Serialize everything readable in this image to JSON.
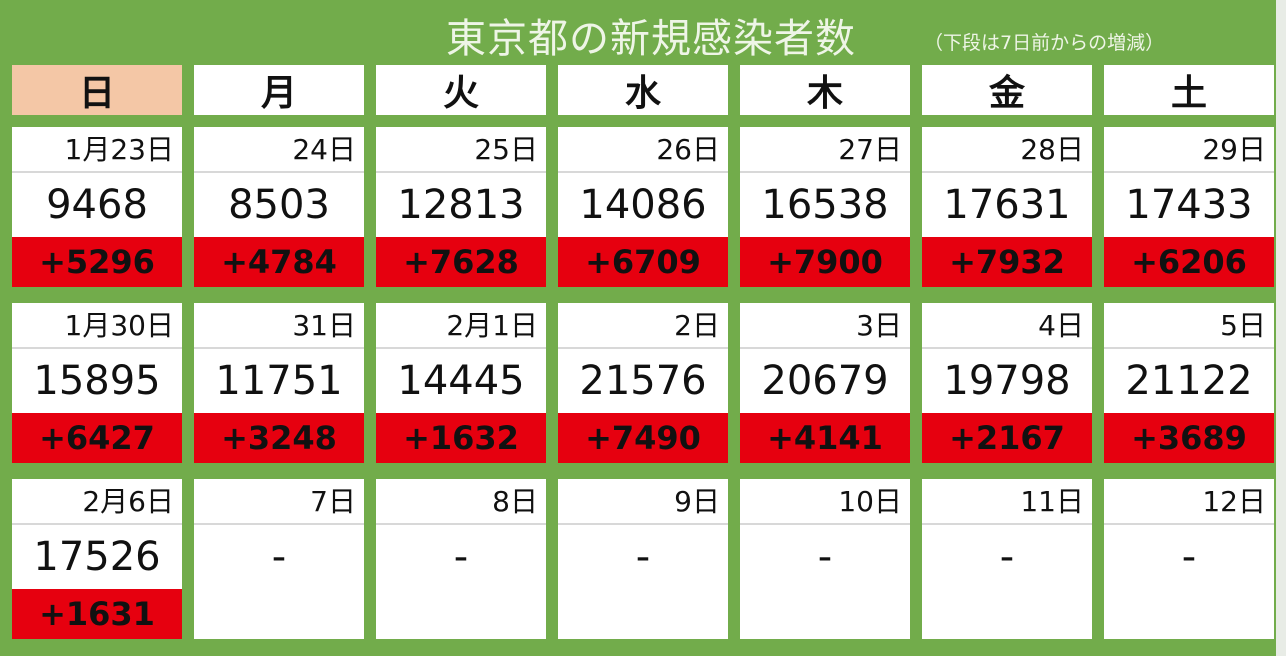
{
  "title": "東京都の新規感染者数",
  "subtitle": "（下段は7日前からの増減）",
  "colors": {
    "background": "#72ac4b",
    "sunday_header": "#f4c7a6",
    "increase": "#e6000f"
  },
  "weekdays": [
    "日",
    "月",
    "火",
    "水",
    "木",
    "金",
    "土"
  ],
  "weeks": [
    [
      {
        "date": "1月23日",
        "count": "9468",
        "diff": "+5296"
      },
      {
        "date": "24日",
        "count": "8503",
        "diff": "+4784"
      },
      {
        "date": "25日",
        "count": "12813",
        "diff": "+7628"
      },
      {
        "date": "26日",
        "count": "14086",
        "diff": "+6709"
      },
      {
        "date": "27日",
        "count": "16538",
        "diff": "+7900"
      },
      {
        "date": "28日",
        "count": "17631",
        "diff": "+7932"
      },
      {
        "date": "29日",
        "count": "17433",
        "diff": "+6206"
      }
    ],
    [
      {
        "date": "1月30日",
        "count": "15895",
        "diff": "+6427"
      },
      {
        "date": "31日",
        "count": "11751",
        "diff": "+3248"
      },
      {
        "date": "2月1日",
        "count": "14445",
        "diff": "+1632"
      },
      {
        "date": "2日",
        "count": "21576",
        "diff": "+7490"
      },
      {
        "date": "3日",
        "count": "20679",
        "diff": "+4141"
      },
      {
        "date": "4日",
        "count": "19798",
        "diff": "+2167"
      },
      {
        "date": "5日",
        "count": "21122",
        "diff": "+3689"
      }
    ],
    [
      {
        "date": "2月6日",
        "count": "17526",
        "diff": "+1631"
      },
      {
        "date": "7日",
        "count": "-",
        "diff": ""
      },
      {
        "date": "8日",
        "count": "-",
        "diff": ""
      },
      {
        "date": "9日",
        "count": "-",
        "diff": ""
      },
      {
        "date": "10日",
        "count": "-",
        "diff": ""
      },
      {
        "date": "11日",
        "count": "-",
        "diff": ""
      },
      {
        "date": "12日",
        "count": "-",
        "diff": ""
      }
    ]
  ]
}
